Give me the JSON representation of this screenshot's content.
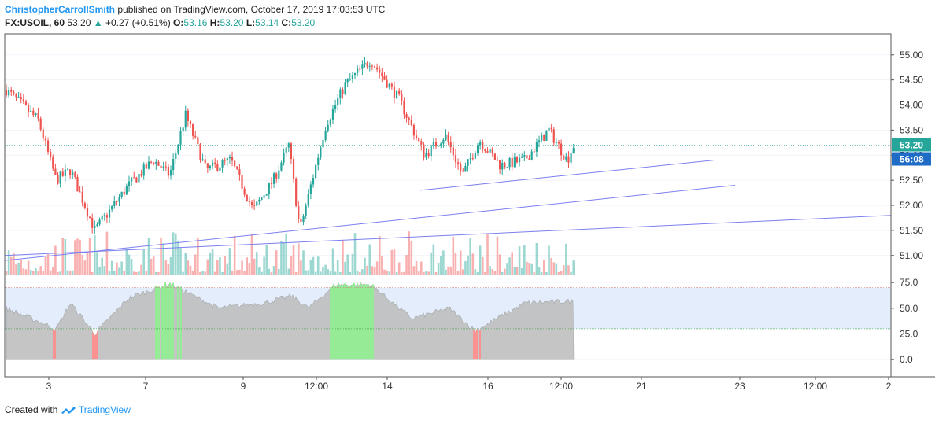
{
  "header": {
    "author": "ChristopherCarrollSmith",
    "published_text": "published on TradingView.com, October 17, 2019 17:03:53 UTC",
    "symbol": "FX:USOIL, 60",
    "last_price": "53.20",
    "change_arrow": "▲",
    "change": "+0.27 (+0.51%)",
    "o_label": "O:",
    "o_value": "53.16",
    "h_label": "H:",
    "h_value": "53.20",
    "l_label": "L:",
    "l_value": "53.14",
    "c_label": "C:",
    "c_value": "53.20"
  },
  "footer": {
    "created_with": "Created with",
    "brand": "TradingView"
  },
  "colors": {
    "up": "#26a69a",
    "down": "#ef5350",
    "trendline": "#7b7ff0",
    "price_line": "#26a69a",
    "rsi_band": "#e3edfb",
    "rsi_fill": "#bcbcbc",
    "countdown_bg": "#1e6cc6"
  },
  "chart_data": {
    "type": "candlestick",
    "symbol": "FX:USOIL",
    "interval": "60",
    "price_axis": {
      "range": [
        50.62,
        55.42
      ],
      "ticks": [
        "55.00",
        "54.50",
        "54.00",
        "53.50",
        "53.00",
        "52.50",
        "52.00",
        "51.50",
        "51.00"
      ]
    },
    "time_axis": {
      "ticks": [
        "3",
        "7",
        "9",
        "12:00",
        "14",
        "16",
        "12:00",
        "21",
        "23",
        "12:00",
        "2"
      ]
    },
    "last_price_label": "53.20",
    "countdown_label": "56:08",
    "path_anchors": [
      {
        "t": "Oct 2",
        "close": 54.3
      },
      {
        "t": "Oct 2",
        "close": 53.7
      },
      {
        "t": "Oct 3",
        "close": 52.5
      },
      {
        "t": "Oct 3",
        "close": 52.7
      },
      {
        "t": "Oct 4",
        "close": 51.5
      },
      {
        "t": "Oct 4",
        "close": 52.4
      },
      {
        "t": "Oct 7",
        "close": 52.9
      },
      {
        "t": "Oct 7",
        "close": 52.6
      },
      {
        "t": "Oct 7",
        "close": 53.8
      },
      {
        "t": "Oct 8",
        "close": 52.7
      },
      {
        "t": "Oct 8",
        "close": 52.9
      },
      {
        "t": "Oct 9",
        "close": 51.9
      },
      {
        "t": "Oct 9",
        "close": 52.5
      },
      {
        "t": "Oct 10",
        "close": 53.2
      },
      {
        "t": "Oct 10",
        "close": 51.5
      },
      {
        "t": "Oct 10",
        "close": 52.4
      },
      {
        "t": "Oct 11",
        "close": 53.6
      },
      {
        "t": "Oct 11",
        "close": 54.4
      },
      {
        "t": "Oct 13",
        "close": 54.9
      },
      {
        "t": "Oct 14",
        "close": 54.1
      },
      {
        "t": "Oct 14",
        "close": 53.0
      },
      {
        "t": "Oct 15",
        "close": 53.4
      },
      {
        "t": "Oct 15",
        "close": 52.6
      },
      {
        "t": "Oct 15",
        "close": 53.3
      },
      {
        "t": "Oct 16",
        "close": 52.8
      },
      {
        "t": "Oct 16",
        "close": 52.9
      },
      {
        "t": "Oct 16",
        "close": 53.5
      },
      {
        "t": "Oct 17",
        "close": 52.9
      },
      {
        "t": "Oct 17",
        "close": 53.2
      }
    ],
    "trendlines": [
      {
        "from": {
          "t": "Oct 15",
          "price": 52.3
        },
        "to": {
          "t": "Oct 21",
          "price": 52.9
        }
      },
      {
        "from": {
          "t": "Oct 3",
          "price": 50.9
        },
        "to": {
          "t": "Oct 22",
          "price": 52.4
        }
      },
      {
        "from": {
          "t": "Oct 2",
          "price": 51.0
        },
        "to": {
          "t": "Oct 24",
          "price": 51.8
        }
      }
    ],
    "volume": {
      "shown": true,
      "max_relative": 1.0
    },
    "rsi": {
      "axis_ticks": [
        "75.0",
        "50.0",
        "25.0",
        "0.0"
      ],
      "range": [
        -6,
        82
      ],
      "upper_band": 70,
      "lower_band": 30,
      "path_anchors": [
        {
          "t": "Oct 2",
          "value": 50
        },
        {
          "t": "Oct 3",
          "value": 30
        },
        {
          "t": "Oct 3",
          "value": 55
        },
        {
          "t": "Oct 4",
          "value": 25
        },
        {
          "t": "Oct 4",
          "value": 60
        },
        {
          "t": "Oct 7",
          "value": 74
        },
        {
          "t": "Oct 8",
          "value": 50
        },
        {
          "t": "Oct 9",
          "value": 55
        },
        {
          "t": "Oct 10",
          "value": 62
        },
        {
          "t": "Oct 10",
          "value": 50
        },
        {
          "t": "Oct 11",
          "value": 73
        },
        {
          "t": "Oct 13",
          "value": 73
        },
        {
          "t": "Oct 14",
          "value": 40
        },
        {
          "t": "Oct 15",
          "value": 50
        },
        {
          "t": "Oct 15",
          "value": 28
        },
        {
          "t": "Oct 16",
          "value": 55
        },
        {
          "t": "Oct 17",
          "value": 57
        }
      ]
    }
  }
}
